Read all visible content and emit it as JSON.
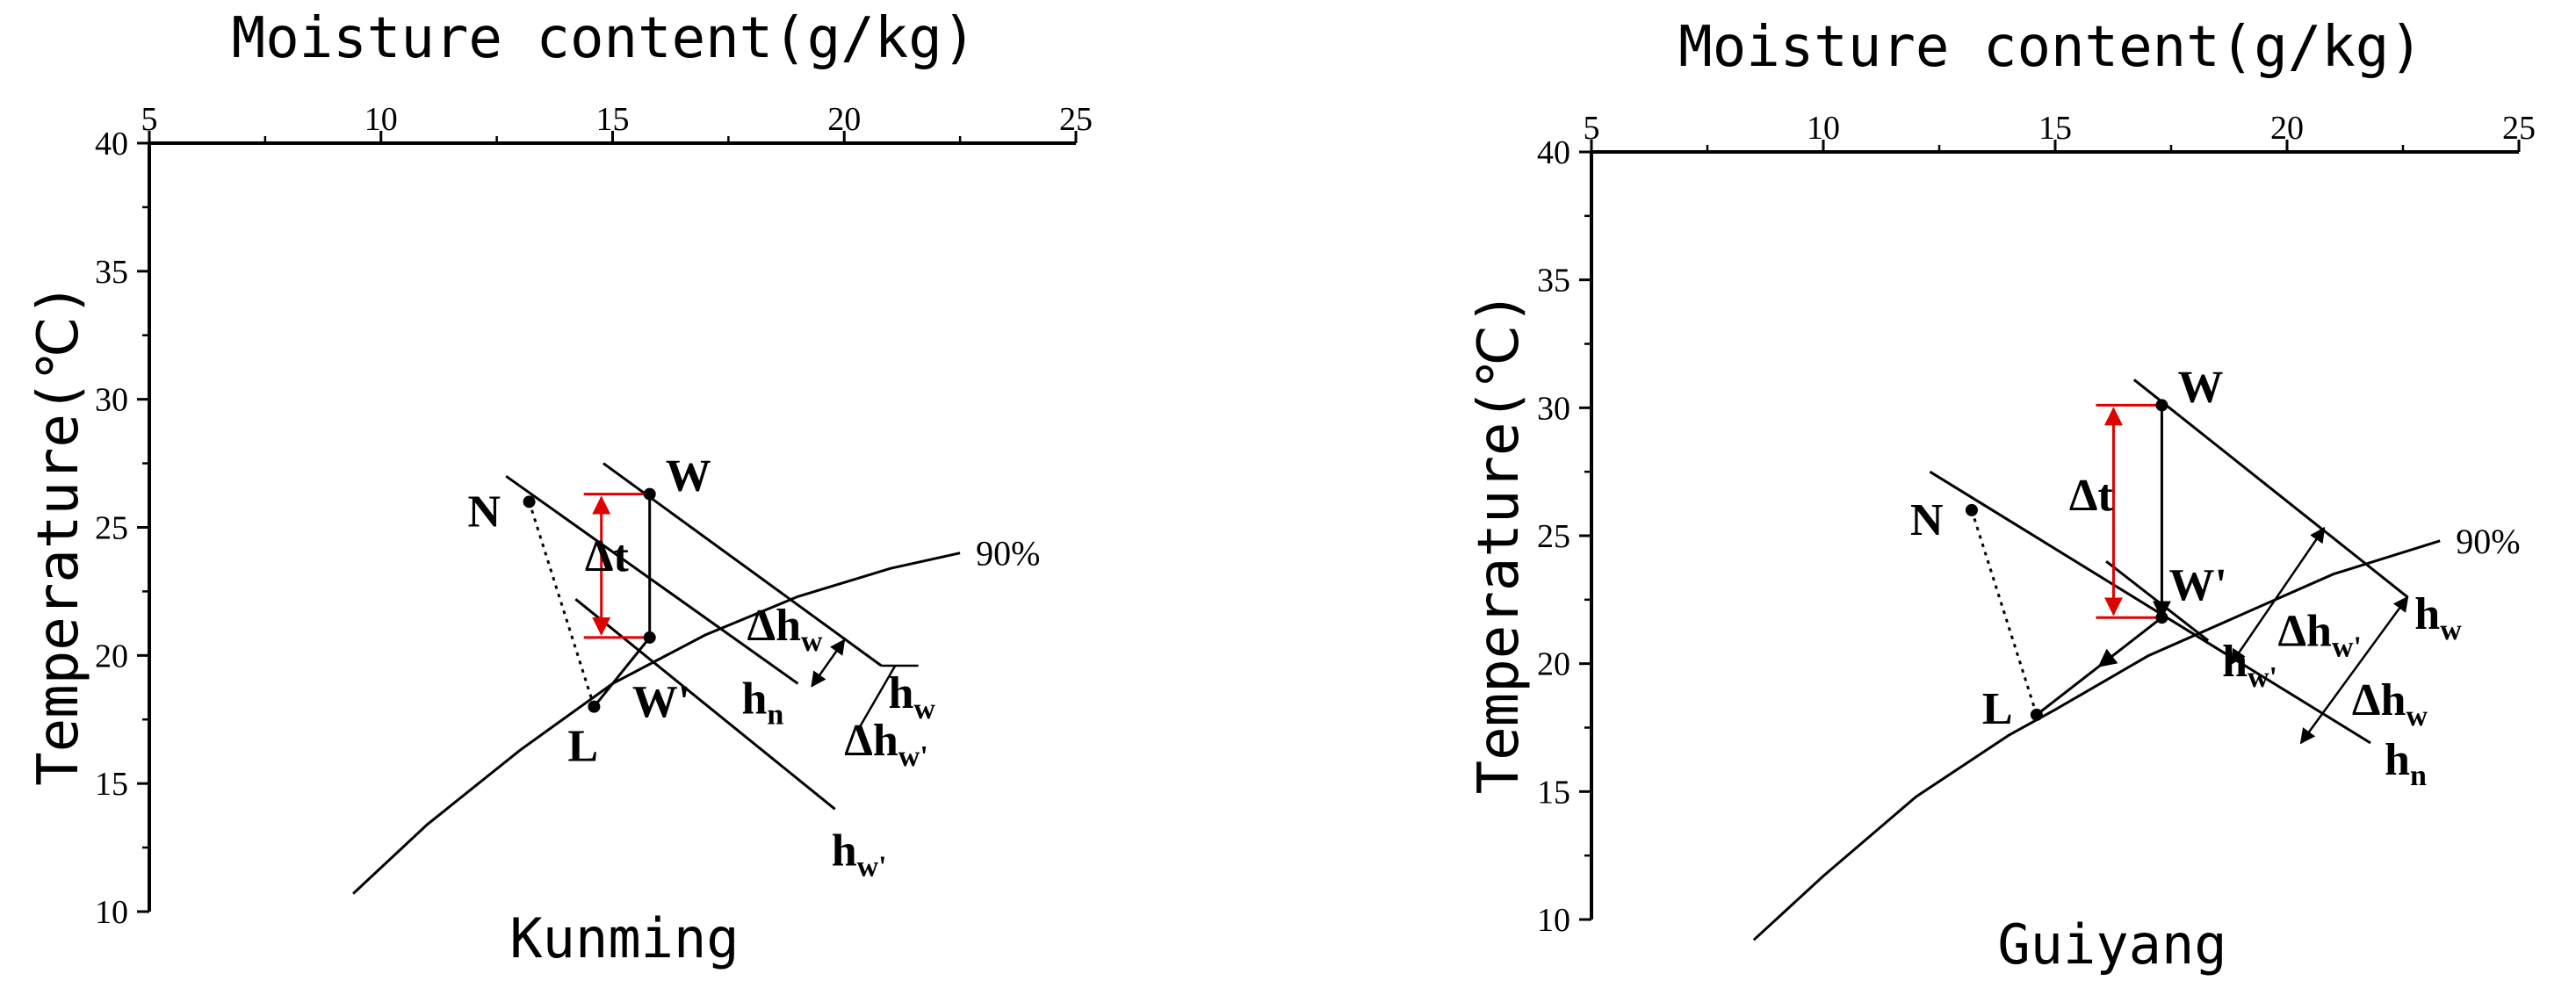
{
  "chart_data": [
    {
      "type": "line",
      "title": "Kunming",
      "xlabel": "Moisture content(g/kg)",
      "ylabel": "Temperature(℃)",
      "x_ticks": [
        "5",
        "10",
        "15",
        "20",
        "25"
      ],
      "y_ticks": [
        "10",
        "15",
        "20",
        "25",
        "30",
        "35",
        "40"
      ],
      "xlim": [
        5,
        25
      ],
      "ylim": [
        10,
        40
      ],
      "x_axis_position": "top",
      "grid": false,
      "rh_curve": {
        "label": "90%",
        "x": [
          9.4,
          11,
          13,
          15,
          17,
          19,
          21,
          22.5
        ],
        "y": [
          10.7,
          13.4,
          16.3,
          18.9,
          20.8,
          22.3,
          23.4,
          24.0
        ]
      },
      "points": [
        {
          "name": "W",
          "x": 15.8,
          "y": 26.3
        },
        {
          "name": "W'",
          "x": 15.8,
          "y": 20.7
        },
        {
          "name": "N",
          "x": 13.2,
          "y": 26.0
        },
        {
          "name": "L",
          "x": 14.6,
          "y": 18.0
        }
      ],
      "enthalpy_lines": [
        {
          "label": "h",
          "sub": "w",
          "x": [
            14.8,
            20.8
          ],
          "y": [
            27.5,
            19.6
          ]
        },
        {
          "label": "h",
          "sub": "n",
          "x": [
            12.7,
            19.0
          ],
          "y": [
            27.0,
            18.9
          ]
        },
        {
          "label": "h",
          "sub": "w'",
          "x": [
            14.2,
            19.8
          ],
          "y": [
            22.2,
            14.0
          ]
        }
      ],
      "annotations": [
        {
          "text": "Δt",
          "kind": "delta_t"
        },
        {
          "text": "Δh",
          "sub": "w"
        },
        {
          "text": "Δh",
          "sub": "w'"
        }
      ]
    },
    {
      "type": "line",
      "title": "Guiyang",
      "xlabel": "Moisture content(g/kg)",
      "ylabel": "Temperature(℃)",
      "x_ticks": [
        "5",
        "10",
        "15",
        "20",
        "25"
      ],
      "y_ticks": [
        "10",
        "15",
        "20",
        "25",
        "30",
        "35",
        "40"
      ],
      "xlim": [
        5,
        25
      ],
      "ylim": [
        10,
        40
      ],
      "x_axis_position": "top",
      "grid": false,
      "rh_curve": {
        "label": "90%",
        "x": [
          8.5,
          10,
          12,
          14,
          15,
          17,
          19,
          21,
          23.3
        ],
        "y": [
          9.2,
          11.7,
          14.8,
          17.2,
          18.2,
          20.3,
          21.9,
          23.5,
          24.8
        ]
      },
      "points": [
        {
          "name": "W",
          "x": 17.3,
          "y": 30.1
        },
        {
          "name": "W'",
          "x": 17.3,
          "y": 21.8
        },
        {
          "name": "N",
          "x": 13.2,
          "y": 26.0
        },
        {
          "name": "L",
          "x": 14.6,
          "y": 18.0
        }
      ],
      "enthalpy_lines": [
        {
          "label": "h",
          "sub": "w",
          "x": [
            16.7,
            22.6
          ],
          "y": [
            31.1,
            22.6
          ]
        },
        {
          "label": "h",
          "sub": "n",
          "x": [
            12.3,
            21.8
          ],
          "y": [
            27.5,
            16.9
          ]
        },
        {
          "label": "h",
          "sub": "w'",
          "x": [
            16.1,
            18.3
          ],
          "y": [
            24.0,
            20.9
          ]
        }
      ],
      "annotations": [
        {
          "text": "Δt",
          "kind": "delta_t"
        },
        {
          "text": "Δh",
          "sub": "w'"
        },
        {
          "text": "Δh",
          "sub": "w"
        }
      ]
    }
  ]
}
